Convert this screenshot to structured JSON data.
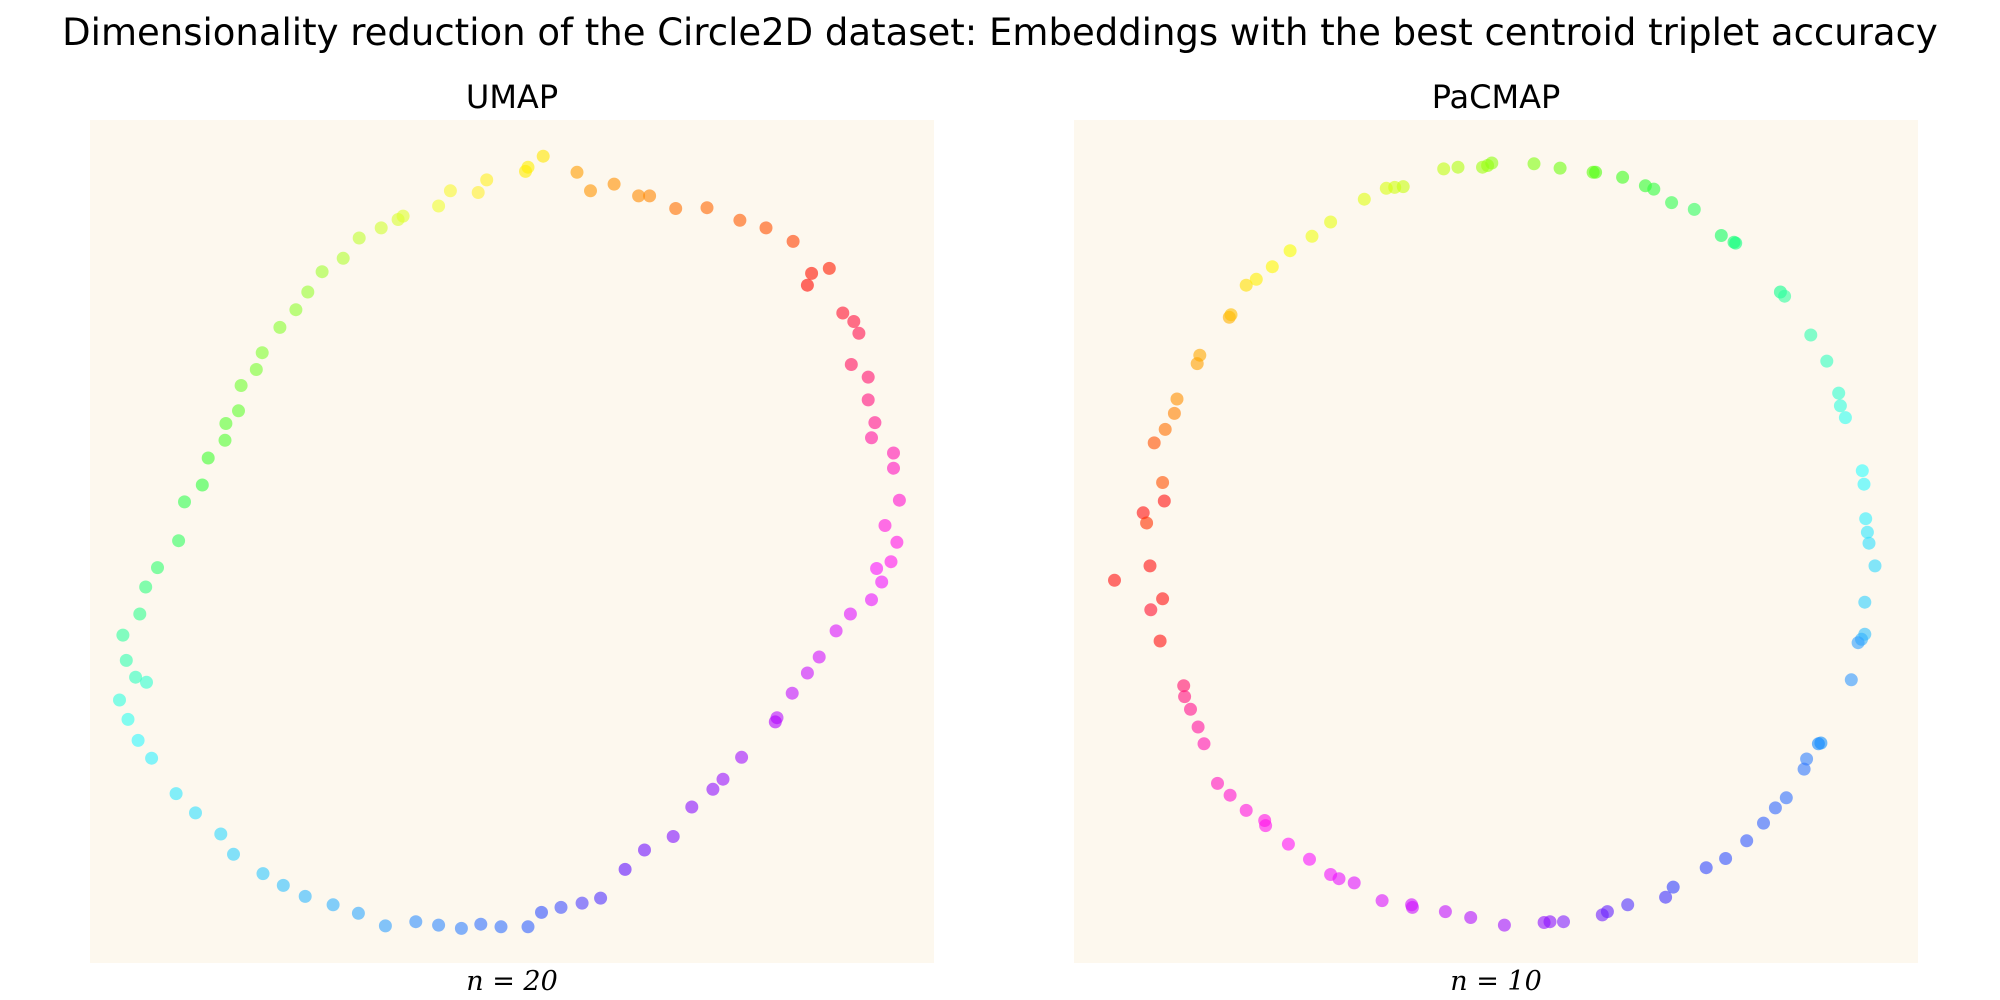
{
  "figure": {
    "title": "Dimensionality reduction of the Circle2D dataset: Embeddings with the best centroid triplet accuracy",
    "background_color": "#fdf8ee"
  },
  "chart_data": [
    {
      "type": "scatter",
      "title": "UMAP",
      "caption": "n = 20",
      "xlabel": "",
      "ylabel": "",
      "axes_visible": false,
      "grid": false,
      "legend": "none",
      "xlim": [
        0,
        100
      ],
      "ylim": [
        0,
        100
      ],
      "marker_alpha": 0.6,
      "color_encoding": "hue around the circle (rainbow)",
      "points": [
        {
          "x": 53.7,
          "y": 95.7,
          "color": "#ffe600"
        },
        {
          "x": 51.9,
          "y": 94.4,
          "color": "#fff000"
        },
        {
          "x": 57.7,
          "y": 93.8,
          "color": "#ff9d00"
        },
        {
          "x": 59.3,
          "y": 91.6,
          "color": "#ff9500"
        },
        {
          "x": 62.1,
          "y": 92.4,
          "color": "#ff9000"
        },
        {
          "x": 65.0,
          "y": 91.0,
          "color": "#ff8b00"
        },
        {
          "x": 66.3,
          "y": 91.0,
          "color": "#ff8600"
        },
        {
          "x": 69.4,
          "y": 89.5,
          "color": "#ff7000"
        },
        {
          "x": 73.1,
          "y": 89.6,
          "color": "#ff6600"
        },
        {
          "x": 77.0,
          "y": 88.1,
          "color": "#ff5a00"
        },
        {
          "x": 80.1,
          "y": 87.2,
          "color": "#ff5000"
        },
        {
          "x": 83.3,
          "y": 85.6,
          "color": "#ff4000"
        },
        {
          "x": 87.6,
          "y": 82.4,
          "color": "#ff1a00"
        },
        {
          "x": 85.5,
          "y": 81.8,
          "color": "#ff1000"
        },
        {
          "x": 85.0,
          "y": 80.4,
          "color": "#ff0800"
        },
        {
          "x": 89.2,
          "y": 77.1,
          "color": "#ff1030"
        },
        {
          "x": 90.5,
          "y": 76.1,
          "color": "#ff1040"
        },
        {
          "x": 91.1,
          "y": 74.7,
          "color": "#ff1050"
        },
        {
          "x": 90.2,
          "y": 71.0,
          "color": "#ff1060"
        },
        {
          "x": 92.2,
          "y": 69.5,
          "color": "#ff1070"
        },
        {
          "x": 92.2,
          "y": 66.8,
          "color": "#ff1080"
        },
        {
          "x": 93.0,
          "y": 64.1,
          "color": "#ff1090"
        },
        {
          "x": 92.6,
          "y": 62.3,
          "color": "#ff10a0"
        },
        {
          "x": 95.2,
          "y": 60.5,
          "color": "#ff10b0"
        },
        {
          "x": 95.2,
          "y": 58.7,
          "color": "#ff10c0"
        },
        {
          "x": 95.9,
          "y": 54.9,
          "color": "#ff10d0"
        },
        {
          "x": 94.2,
          "y": 51.9,
          "color": "#ff10e0"
        },
        {
          "x": 95.6,
          "y": 49.9,
          "color": "#ff10e8"
        },
        {
          "x": 94.9,
          "y": 47.6,
          "color": "#ff10f0"
        },
        {
          "x": 93.2,
          "y": 46.8,
          "color": "#f810ff"
        },
        {
          "x": 93.8,
          "y": 45.2,
          "color": "#f010ff"
        },
        {
          "x": 92.6,
          "y": 43.1,
          "color": "#e810ff"
        },
        {
          "x": 90.1,
          "y": 41.4,
          "color": "#e010ff"
        },
        {
          "x": 88.4,
          "y": 39.4,
          "color": "#d810ff"
        },
        {
          "x": 86.4,
          "y": 36.3,
          "color": "#d010ff"
        },
        {
          "x": 85.0,
          "y": 34.4,
          "color": "#c810ff"
        },
        {
          "x": 83.2,
          "y": 32.0,
          "color": "#c010ff"
        },
        {
          "x": 81.4,
          "y": 29.1,
          "color": "#b810ff"
        },
        {
          "x": 81.2,
          "y": 28.6,
          "color": "#b000ff"
        },
        {
          "x": 77.2,
          "y": 24.4,
          "color": "#a010ff"
        },
        {
          "x": 75.0,
          "y": 21.8,
          "color": "#9810ff"
        },
        {
          "x": 73.8,
          "y": 20.6,
          "color": "#9010ff"
        },
        {
          "x": 71.3,
          "y": 18.5,
          "color": "#8810ff"
        },
        {
          "x": 69.1,
          "y": 15.0,
          "color": "#8010ff"
        },
        {
          "x": 65.7,
          "y": 13.4,
          "color": "#7010ff"
        },
        {
          "x": 63.4,
          "y": 11.1,
          "color": "#6010ff"
        },
        {
          "x": 60.5,
          "y": 7.7,
          "color": "#5030ff"
        },
        {
          "x": 58.3,
          "y": 7.1,
          "color": "#5040ff"
        },
        {
          "x": 55.8,
          "y": 6.6,
          "color": "#4050ff"
        },
        {
          "x": 53.5,
          "y": 6.0,
          "color": "#3050ff"
        },
        {
          "x": 51.9,
          "y": 4.3,
          "color": "#3060ff"
        },
        {
          "x": 48.7,
          "y": 4.3,
          "color": "#3070ff"
        },
        {
          "x": 46.3,
          "y": 4.6,
          "color": "#3070ff"
        },
        {
          "x": 44.0,
          "y": 4.1,
          "color": "#3080ff"
        },
        {
          "x": 41.3,
          "y": 4.5,
          "color": "#3088ff"
        },
        {
          "x": 38.6,
          "y": 4.9,
          "color": "#3090ff"
        },
        {
          "x": 35.0,
          "y": 4.4,
          "color": "#30a0ff"
        },
        {
          "x": 31.8,
          "y": 5.9,
          "color": "#30a8ff"
        },
        {
          "x": 28.8,
          "y": 6.9,
          "color": "#30b0ff"
        },
        {
          "x": 25.5,
          "y": 7.9,
          "color": "#30b8ff"
        },
        {
          "x": 22.9,
          "y": 9.2,
          "color": "#30c0ff"
        },
        {
          "x": 20.5,
          "y": 10.6,
          "color": "#30c8ff"
        },
        {
          "x": 17.0,
          "y": 12.9,
          "color": "#30d0ff"
        },
        {
          "x": 15.5,
          "y": 15.3,
          "color": "#30d8ff"
        },
        {
          "x": 12.5,
          "y": 17.8,
          "color": "#30e0ff"
        },
        {
          "x": 10.2,
          "y": 20.1,
          "color": "#30e8ff"
        },
        {
          "x": 7.3,
          "y": 24.3,
          "color": "#30f0ff"
        },
        {
          "x": 5.7,
          "y": 26.4,
          "color": "#30f8ff"
        },
        {
          "x": 4.5,
          "y": 28.9,
          "color": "#30fff0"
        },
        {
          "x": 3.5,
          "y": 31.2,
          "color": "#30ffe0"
        },
        {
          "x": 6.7,
          "y": 33.3,
          "color": "#30ffd0"
        },
        {
          "x": 5.4,
          "y": 33.9,
          "color": "#30ffc0"
        },
        {
          "x": 4.3,
          "y": 35.9,
          "color": "#30ffb0"
        },
        {
          "x": 3.9,
          "y": 38.9,
          "color": "#30ffa0"
        },
        {
          "x": 5.9,
          "y": 41.4,
          "color": "#30ff90"
        },
        {
          "x": 6.6,
          "y": 44.6,
          "color": "#30ff80"
        },
        {
          "x": 8.0,
          "y": 46.9,
          "color": "#30ff70"
        },
        {
          "x": 10.5,
          "y": 50.1,
          "color": "#30ff60"
        },
        {
          "x": 11.2,
          "y": 54.7,
          "color": "#30ff50"
        },
        {
          "x": 13.3,
          "y": 56.7,
          "color": "#30ff40"
        },
        {
          "x": 14.0,
          "y": 59.9,
          "color": "#40ff30"
        },
        {
          "x": 16.0,
          "y": 62.0,
          "color": "#50ff30"
        },
        {
          "x": 16.1,
          "y": 64.0,
          "color": "#58ff30"
        },
        {
          "x": 17.6,
          "y": 65.5,
          "color": "#60ff30"
        },
        {
          "x": 17.9,
          "y": 68.5,
          "color": "#70ff30"
        },
        {
          "x": 19.7,
          "y": 70.4,
          "color": "#78ff30"
        },
        {
          "x": 20.4,
          "y": 72.4,
          "color": "#80ff30"
        },
        {
          "x": 22.5,
          "y": 75.4,
          "color": "#88ff30"
        },
        {
          "x": 24.4,
          "y": 77.5,
          "color": "#90ff30"
        },
        {
          "x": 25.8,
          "y": 79.6,
          "color": "#98ff30"
        },
        {
          "x": 27.5,
          "y": 82.0,
          "color": "#a0ff30"
        },
        {
          "x": 30.0,
          "y": 83.6,
          "color": "#b0ff30"
        },
        {
          "x": 31.9,
          "y": 86.0,
          "color": "#c0ff30"
        },
        {
          "x": 34.5,
          "y": 87.2,
          "color": "#d0ff30"
        },
        {
          "x": 36.5,
          "y": 88.2,
          "color": "#d8ff30"
        },
        {
          "x": 37.1,
          "y": 88.6,
          "color": "#e0ff30"
        },
        {
          "x": 41.3,
          "y": 89.8,
          "color": "#f0ff30"
        },
        {
          "x": 42.7,
          "y": 91.6,
          "color": "#f8f830"
        },
        {
          "x": 46.0,
          "y": 91.4,
          "color": "#fff030"
        },
        {
          "x": 47.0,
          "y": 92.9,
          "color": "#fff020"
        },
        {
          "x": 51.6,
          "y": 93.9,
          "color": "#ffec00"
        }
      ]
    },
    {
      "type": "scatter",
      "title": "PaCMAP",
      "caption": "n = 10",
      "xlabel": "",
      "ylabel": "",
      "axes_visible": false,
      "grid": false,
      "legend": "none",
      "xlim": [
        0,
        100
      ],
      "ylim": [
        0,
        100
      ],
      "marker_alpha": 0.6,
      "color_encoding": "hue around the circle (rainbow)",
      "points": [
        {
          "x": 4.8,
          "y": 45.4,
          "color": "#ff1010"
        },
        {
          "x": 9.1,
          "y": 41.9,
          "color": "#ff1030"
        },
        {
          "x": 10.2,
          "y": 38.2,
          "color": "#ff1010"
        },
        {
          "x": 10.5,
          "y": 43.2,
          "color": "#ff1010"
        },
        {
          "x": 9.0,
          "y": 47.1,
          "color": "#ff1010"
        },
        {
          "x": 10.7,
          "y": 54.8,
          "color": "#ff1010"
        },
        {
          "x": 8.2,
          "y": 53.4,
          "color": "#ff1010"
        },
        {
          "x": 8.6,
          "y": 52.2,
          "color": "#ff3000"
        },
        {
          "x": 10.5,
          "y": 57.0,
          "color": "#ff5000"
        },
        {
          "x": 9.5,
          "y": 61.7,
          "color": "#ff5000"
        },
        {
          "x": 10.8,
          "y": 63.3,
          "color": "#ff7000"
        },
        {
          "x": 11.9,
          "y": 65.2,
          "color": "#ff8000"
        },
        {
          "x": 12.2,
          "y": 66.9,
          "color": "#ff9000"
        },
        {
          "x": 14.6,
          "y": 71.1,
          "color": "#ffa000"
        },
        {
          "x": 14.9,
          "y": 72.1,
          "color": "#ffa800"
        },
        {
          "x": 18.4,
          "y": 76.6,
          "color": "#ffb000"
        },
        {
          "x": 18.6,
          "y": 76.9,
          "color": "#ffc000"
        },
        {
          "x": 20.4,
          "y": 80.4,
          "color": "#ffe000"
        },
        {
          "x": 21.6,
          "y": 81.1,
          "color": "#fff000"
        },
        {
          "x": 23.5,
          "y": 82.6,
          "color": "#fff800"
        },
        {
          "x": 25.6,
          "y": 84.5,
          "color": "#f8ff00"
        },
        {
          "x": 28.2,
          "y": 86.2,
          "color": "#f0ff10"
        },
        {
          "x": 30.4,
          "y": 87.9,
          "color": "#e8ff10"
        },
        {
          "x": 34.4,
          "y": 90.6,
          "color": "#e0ff10"
        },
        {
          "x": 37.0,
          "y": 91.9,
          "color": "#d8ff10"
        },
        {
          "x": 38.0,
          "y": 92.0,
          "color": "#d0ff10"
        },
        {
          "x": 39.0,
          "y": 92.1,
          "color": "#c8ff10"
        },
        {
          "x": 43.8,
          "y": 94.2,
          "color": "#c0ff10"
        },
        {
          "x": 45.5,
          "y": 94.4,
          "color": "#b0ff10"
        },
        {
          "x": 48.4,
          "y": 94.4,
          "color": "#a0ff10"
        },
        {
          "x": 49.0,
          "y": 94.6,
          "color": "#98ff10"
        },
        {
          "x": 49.5,
          "y": 94.9,
          "color": "#90ff10"
        },
        {
          "x": 54.5,
          "y": 94.8,
          "color": "#80ff10"
        },
        {
          "x": 57.6,
          "y": 94.3,
          "color": "#70ff10"
        },
        {
          "x": 61.5,
          "y": 93.8,
          "color": "#60ff10"
        },
        {
          "x": 61.8,
          "y": 93.8,
          "color": "#50ff10"
        },
        {
          "x": 65.0,
          "y": 93.2,
          "color": "#40ff20"
        },
        {
          "x": 67.7,
          "y": 92.2,
          "color": "#30ff30"
        },
        {
          "x": 68.7,
          "y": 91.8,
          "color": "#30ff40"
        },
        {
          "x": 70.8,
          "y": 90.2,
          "color": "#30ff50"
        },
        {
          "x": 73.5,
          "y": 89.4,
          "color": "#30ff60"
        },
        {
          "x": 76.7,
          "y": 86.3,
          "color": "#10ff60"
        },
        {
          "x": 78.2,
          "y": 85.5,
          "color": "#10ff70"
        },
        {
          "x": 78.4,
          "y": 85.4,
          "color": "#10ff80"
        },
        {
          "x": 83.7,
          "y": 79.6,
          "color": "#10ff90"
        },
        {
          "x": 84.2,
          "y": 79.1,
          "color": "#30ffa0"
        },
        {
          "x": 87.3,
          "y": 74.5,
          "color": "#30ffb0"
        },
        {
          "x": 89.2,
          "y": 71.4,
          "color": "#30ffc0"
        },
        {
          "x": 90.6,
          "y": 67.6,
          "color": "#30ffd0"
        },
        {
          "x": 90.8,
          "y": 66.1,
          "color": "#30ffe0"
        },
        {
          "x": 91.4,
          "y": 64.7,
          "color": "#30fff0"
        },
        {
          "x": 93.4,
          "y": 58.4,
          "color": "#30ffff"
        },
        {
          "x": 93.6,
          "y": 56.8,
          "color": "#30f8ff"
        },
        {
          "x": 93.8,
          "y": 52.7,
          "color": "#30f0ff"
        },
        {
          "x": 94.0,
          "y": 51.1,
          "color": "#30e8ff"
        },
        {
          "x": 94.2,
          "y": 49.8,
          "color": "#30e0ff"
        },
        {
          "x": 94.9,
          "y": 47.1,
          "color": "#30d8ff"
        },
        {
          "x": 93.7,
          "y": 42.8,
          "color": "#30d0ff"
        },
        {
          "x": 93.7,
          "y": 39.0,
          "color": "#30c0ff"
        },
        {
          "x": 93.3,
          "y": 38.4,
          "color": "#30b0ff"
        },
        {
          "x": 92.9,
          "y": 38.0,
          "color": "#30a0ff"
        },
        {
          "x": 92.1,
          "y": 33.6,
          "color": "#3098ff"
        },
        {
          "x": 88.5,
          "y": 26.1,
          "color": "#1090ff"
        },
        {
          "x": 88.2,
          "y": 26.0,
          "color": "#1088ff"
        },
        {
          "x": 86.8,
          "y": 24.2,
          "color": "#3080ff"
        },
        {
          "x": 86.5,
          "y": 23.0,
          "color": "#3078ff"
        },
        {
          "x": 84.4,
          "y": 19.6,
          "color": "#3070ff"
        },
        {
          "x": 83.1,
          "y": 18.4,
          "color": "#3068ff"
        },
        {
          "x": 81.7,
          "y": 16.6,
          "color": "#3060ff"
        },
        {
          "x": 79.7,
          "y": 14.5,
          "color": "#3058ff"
        },
        {
          "x": 77.2,
          "y": 12.4,
          "color": "#3050ff"
        },
        {
          "x": 74.9,
          "y": 11.3,
          "color": "#3048ff"
        },
        {
          "x": 71.0,
          "y": 9.0,
          "color": "#3040ff"
        },
        {
          "x": 70.1,
          "y": 7.8,
          "color": "#4030ff"
        },
        {
          "x": 65.6,
          "y": 6.9,
          "color": "#5030ff"
        },
        {
          "x": 63.2,
          "y": 6.1,
          "color": "#6020ff"
        },
        {
          "x": 62.6,
          "y": 5.7,
          "color": "#7020ff"
        },
        {
          "x": 58.0,
          "y": 4.9,
          "color": "#8020ff"
        },
        {
          "x": 56.4,
          "y": 4.9,
          "color": "#8810ff"
        },
        {
          "x": 55.7,
          "y": 4.8,
          "color": "#9010ff"
        },
        {
          "x": 51.0,
          "y": 4.5,
          "color": "#a010ff"
        },
        {
          "x": 47.0,
          "y": 5.4,
          "color": "#b010ff"
        },
        {
          "x": 44.0,
          "y": 6.1,
          "color": "#c010ff"
        },
        {
          "x": 40.1,
          "y": 6.6,
          "color": "#c810ff"
        },
        {
          "x": 40.0,
          "y": 6.9,
          "color": "#d010ff"
        },
        {
          "x": 36.5,
          "y": 7.4,
          "color": "#d810ff"
        },
        {
          "x": 33.2,
          "y": 9.5,
          "color": "#e010ff"
        },
        {
          "x": 31.4,
          "y": 10.0,
          "color": "#e810ff"
        },
        {
          "x": 30.4,
          "y": 10.5,
          "color": "#f010ff"
        },
        {
          "x": 27.9,
          "y": 12.3,
          "color": "#f810ff"
        },
        {
          "x": 25.4,
          "y": 14.1,
          "color": "#ff10f8"
        },
        {
          "x": 22.7,
          "y": 16.3,
          "color": "#ff10f0"
        },
        {
          "x": 22.6,
          "y": 16.9,
          "color": "#ff10e8"
        },
        {
          "x": 20.4,
          "y": 18.1,
          "color": "#ff10e0"
        },
        {
          "x": 18.5,
          "y": 19.9,
          "color": "#ff10d0"
        },
        {
          "x": 17.0,
          "y": 21.3,
          "color": "#ff10c0"
        },
        {
          "x": 15.4,
          "y": 26.0,
          "color": "#ff10b0"
        },
        {
          "x": 14.7,
          "y": 28.0,
          "color": "#ff10a0"
        },
        {
          "x": 13.8,
          "y": 30.1,
          "color": "#ff1090"
        },
        {
          "x": 13.1,
          "y": 31.6,
          "color": "#ff1080"
        },
        {
          "x": 13.0,
          "y": 32.9,
          "color": "#ff1070"
        }
      ]
    }
  ]
}
